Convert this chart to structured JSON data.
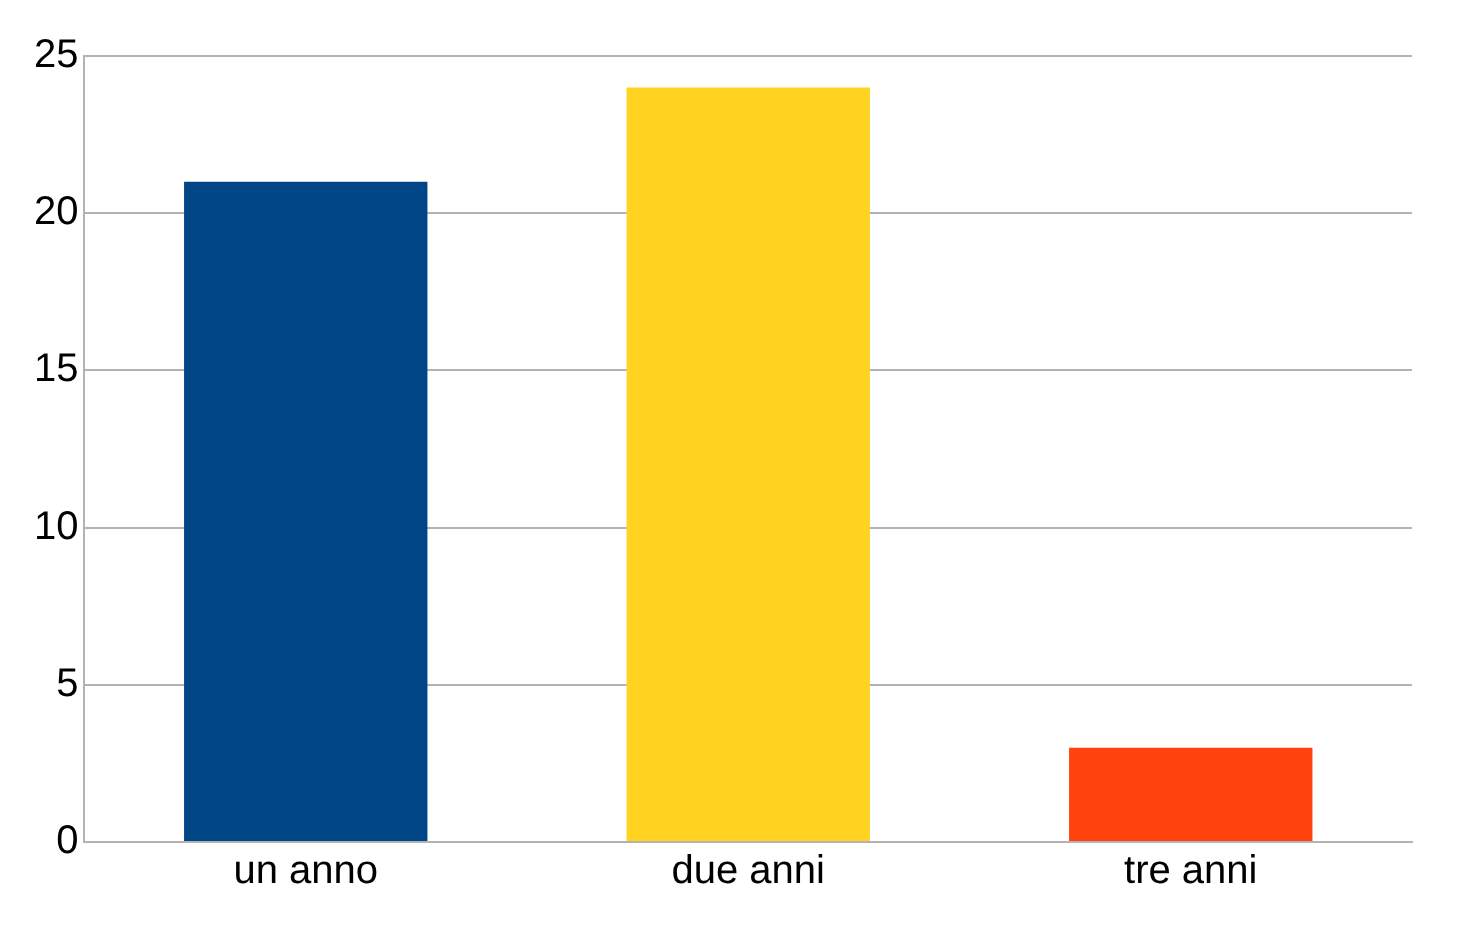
{
  "chart_data": {
    "type": "bar",
    "categories": [
      "un anno",
      "due anni",
      "tre anni"
    ],
    "values": [
      21,
      24,
      3
    ],
    "colors": [
      "#004586",
      "#ffd320",
      "#ff420e"
    ],
    "ylim": [
      0,
      25
    ],
    "yticks": [
      0,
      5,
      10,
      15,
      20,
      25
    ],
    "grid": "y"
  }
}
